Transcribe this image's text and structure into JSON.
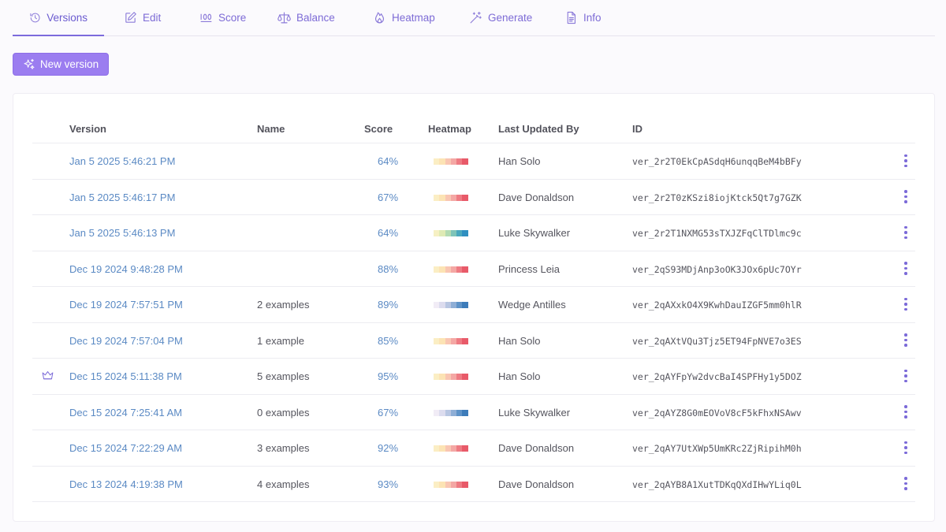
{
  "tabs": [
    {
      "label": "Versions",
      "icon": "history-icon",
      "active": true
    },
    {
      "label": "Edit",
      "icon": "edit-icon",
      "active": false
    },
    {
      "label": "Score",
      "icon": "score-100-icon",
      "active": false
    },
    {
      "label": "Balance",
      "icon": "scale-icon",
      "active": false
    },
    {
      "label": "Heatmap",
      "icon": "flame-icon",
      "active": false
    },
    {
      "label": "Generate",
      "icon": "magic-wand-icon",
      "active": false
    },
    {
      "label": "Info",
      "icon": "document-icon",
      "active": false
    }
  ],
  "toolbar": {
    "new_version_label": "New version",
    "new_version_icon": "sparkles-icon",
    "button_color": "#9b7df0"
  },
  "table": {
    "headers": {
      "version": "Version",
      "name": "Name",
      "score": "Score",
      "heatmap": "Heatmap",
      "updated_by": "Last Updated By",
      "id": "ID"
    },
    "rows": [
      {
        "version": "Jan 5 2025 5:46:21 PM",
        "name": "",
        "score": "64%",
        "heatmap": [
          "#fbeec4",
          "#fce3b4",
          "#f9c6b2",
          "#f4a7a4",
          "#ee7b83",
          "#e85a69"
        ],
        "updated_by": "Han Solo",
        "id": "ver_2r2T0EkCpASdqH6unqqBeM4bBFy",
        "crown": false
      },
      {
        "version": "Jan 5 2025 5:46:17 PM",
        "name": "",
        "score": "67%",
        "heatmap": [
          "#fbeec4",
          "#fce3b4",
          "#f9c6b2",
          "#f4a7a4",
          "#ee7b83",
          "#e85a69"
        ],
        "updated_by": "Dave Donaldson",
        "id": "ver_2r2T0zKSzi8iojKtck5Qt7g7GZK",
        "crown": false
      },
      {
        "version": "Jan 5 2025 5:46:13 PM",
        "name": "",
        "score": "64%",
        "heatmap": [
          "#f6f0c3",
          "#dfeab4",
          "#b3dbb2",
          "#7ec4b8",
          "#4aa8bd",
          "#2f8fc0"
        ],
        "updated_by": "Luke Skywalker",
        "id": "ver_2r2T1NXMG53sTXJZFqClTDlmc9c",
        "crown": false
      },
      {
        "version": "Dec 19 2024 9:48:28 PM",
        "name": "",
        "score": "88%",
        "heatmap": [
          "#fbeec4",
          "#fce3b4",
          "#f9c6b2",
          "#f4a7a4",
          "#ee7b83",
          "#e85a69"
        ],
        "updated_by": "Princess Leia",
        "id": "ver_2qS93MDjAnp3oOK3JOx6pUc7OYr",
        "crown": false
      },
      {
        "version": "Dec 19 2024 7:57:51 PM",
        "name": "2 examples",
        "score": "89%",
        "heatmap": [
          "#f1ecf6",
          "#dcdcee",
          "#b8c6e2",
          "#8eaed6",
          "#5f93c8",
          "#3d7cba"
        ],
        "updated_by": "Wedge Antilles",
        "id": "ver_2qAXxkO4X9KwhDauIZGF5mm0hlR",
        "crown": false
      },
      {
        "version": "Dec 19 2024 7:57:04 PM",
        "name": "1 example",
        "score": "85%",
        "heatmap": [
          "#fbeec4",
          "#fce3b4",
          "#f9c6b2",
          "#f4a7a4",
          "#ee7b83",
          "#e85a69"
        ],
        "updated_by": "Han Solo",
        "id": "ver_2qAXtVQu3Tjz5ET94FpNVE7o3ES",
        "crown": false
      },
      {
        "version": "Dec 15 2024 5:11:38 PM",
        "name": "5 examples",
        "score": "95%",
        "heatmap": [
          "#fbeec4",
          "#fce3b4",
          "#f9c6b2",
          "#f4a7a4",
          "#ee7b83",
          "#e85a69"
        ],
        "updated_by": "Han Solo",
        "id": "ver_2qAYFpYw2dvcBaI4SPFHy1y5DOZ",
        "crown": true
      },
      {
        "version": "Dec 15 2024 7:25:41 AM",
        "name": "0 examples",
        "score": "67%",
        "heatmap": [
          "#f1ecf6",
          "#dcdcee",
          "#b8c6e2",
          "#8eaed6",
          "#5f93c8",
          "#3d7cba"
        ],
        "updated_by": "Luke Skywalker",
        "id": "ver_2qAYZ8G0mEOVoV8cF5kFhxNSAwv",
        "crown": false
      },
      {
        "version": "Dec 15 2024 7:22:29 AM",
        "name": "3 examples",
        "score": "92%",
        "heatmap": [
          "#fbeec4",
          "#fce3b4",
          "#f9c6b2",
          "#f4a7a4",
          "#ee7b83",
          "#e85a69"
        ],
        "updated_by": "Dave Donaldson",
        "id": "ver_2qAY7UtXWp5UmKRc2ZjRipihM0h",
        "crown": false
      },
      {
        "version": "Dec 13 2024 4:19:38 PM",
        "name": "4 examples",
        "score": "93%",
        "heatmap": [
          "#fbeec4",
          "#fce3b4",
          "#f9c6b2",
          "#f4a7a4",
          "#ee7b83",
          "#e85a69"
        ],
        "updated_by": "Dave Donaldson",
        "id": "ver_2qAYB8A1XutTDKqQXdIHwYLiq0L",
        "crown": false
      }
    ]
  },
  "colors": {
    "accent": "#7c6bdc",
    "link": "#5b8ac4"
  }
}
